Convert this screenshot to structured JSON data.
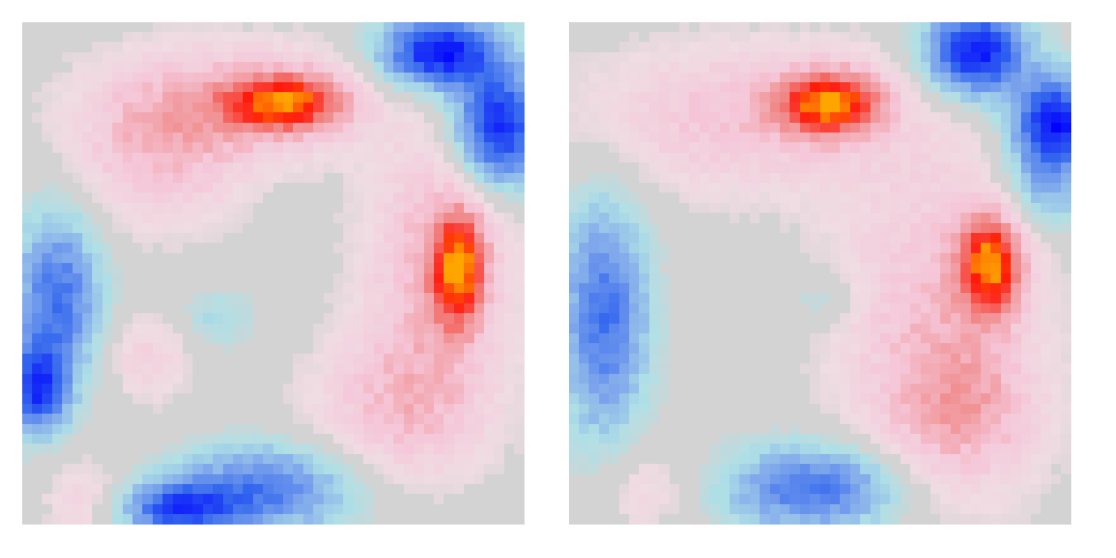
{
  "chart_data": {
    "type": "heatmap",
    "colormap": {
      "name": "diverging-blue-grey-red",
      "stops": [
        {
          "value": -1.0,
          "color": "#0000ff"
        },
        {
          "value": -0.66,
          "color": "#3366ee"
        },
        {
          "value": -0.4,
          "color": "#7ea6ec"
        },
        {
          "value": -0.15,
          "color": "#b0e0e6"
        },
        {
          "value": 0.0,
          "color": "#d3d3d3"
        },
        {
          "value": 0.1,
          "color": "#f0dce3"
        },
        {
          "value": 0.3,
          "color": "#f5c6d8"
        },
        {
          "value": 0.55,
          "color": "#f08a8a"
        },
        {
          "value": 0.8,
          "color": "#ff1a0a"
        },
        {
          "value": 1.0,
          "color": "#ffa500"
        }
      ]
    },
    "grid": {
      "rows": 50,
      "cols": 50
    },
    "axes_visible": false,
    "panels": [
      {
        "seed": 7,
        "sharpness": 0.55,
        "blobs": [
          {
            "cx": 20.5,
            "cy": 7.5,
            "sx": 9,
            "sy": 4,
            "amp": 0.34
          },
          {
            "cx": 26.0,
            "cy": 7.5,
            "sx": 4,
            "sy": 2.0,
            "amp": 0.72
          },
          {
            "cx": 13.0,
            "cy": 13.0,
            "sx": 6,
            "sy": 5,
            "amp": 0.28
          },
          {
            "cx": 41.0,
            "cy": 24.0,
            "sx": 5,
            "sy": 9,
            "amp": 0.36
          },
          {
            "cx": 43.0,
            "cy": 24.0,
            "sx": 1.8,
            "sy": 4,
            "amp": 0.75
          },
          {
            "cx": 37.0,
            "cy": 38.0,
            "sx": 6,
            "sy": 5,
            "amp": 0.3
          },
          {
            "cx": 12.0,
            "cy": 33.0,
            "sx": 3,
            "sy": 3,
            "amp": 0.2
          },
          {
            "cx": 6.0,
            "cy": 47.0,
            "sx": 3,
            "sy": 3,
            "amp": 0.18
          },
          {
            "cx": 41.0,
            "cy": 2.5,
            "sx": 4,
            "sy": 2.5,
            "amp": -0.95
          },
          {
            "cx": 47.0,
            "cy": 10.0,
            "sx": 3,
            "sy": 4,
            "amp": -0.9
          },
          {
            "cx": 3.0,
            "cy": 27.0,
            "sx": 3,
            "sy": 6,
            "amp": -0.6
          },
          {
            "cx": 1.0,
            "cy": 36.0,
            "sx": 2,
            "sy": 3,
            "amp": -0.75
          },
          {
            "cx": 24.0,
            "cy": 46.0,
            "sx": 6,
            "sy": 3,
            "amp": -0.55
          },
          {
            "cx": 15.0,
            "cy": 48.0,
            "sx": 4,
            "sy": 2,
            "amp": -0.7
          },
          {
            "cx": 19.0,
            "cy": 29.0,
            "sx": 2.5,
            "sy": 2,
            "amp": -0.18
          }
        ]
      },
      {
        "seed": 19,
        "sharpness": 0.45,
        "blobs": [
          {
            "cx": 17.0,
            "cy": 9.0,
            "sx": 11,
            "sy": 5,
            "amp": 0.3
          },
          {
            "cx": 25.5,
            "cy": 7.5,
            "sx": 3.5,
            "sy": 2.2,
            "amp": 0.82
          },
          {
            "cx": 36.0,
            "cy": 29.0,
            "sx": 7,
            "sy": 12,
            "amp": 0.3
          },
          {
            "cx": 41.5,
            "cy": 23.5,
            "sx": 2.2,
            "sy": 3.5,
            "amp": 0.82
          },
          {
            "cx": 39.0,
            "cy": 38.0,
            "sx": 5,
            "sy": 5,
            "amp": 0.28
          },
          {
            "cx": 7.0,
            "cy": 46.0,
            "sx": 3,
            "sy": 3,
            "amp": 0.16
          },
          {
            "cx": 40.0,
            "cy": 2.5,
            "sx": 3.5,
            "sy": 3,
            "amp": -0.95
          },
          {
            "cx": 48.0,
            "cy": 9.5,
            "sx": 3,
            "sy": 3,
            "amp": -0.95
          },
          {
            "cx": 47.0,
            "cy": 16.0,
            "sx": 3,
            "sy": 3,
            "amp": -0.35
          },
          {
            "cx": 3.0,
            "cy": 29.0,
            "sx": 3,
            "sy": 8,
            "amp": -0.6
          },
          {
            "cx": 24.0,
            "cy": 46.0,
            "sx": 6,
            "sy": 3,
            "amp": -0.6
          },
          {
            "cx": 25.0,
            "cy": 27.0,
            "sx": 2.5,
            "sy": 2,
            "amp": -0.15
          }
        ]
      }
    ]
  }
}
